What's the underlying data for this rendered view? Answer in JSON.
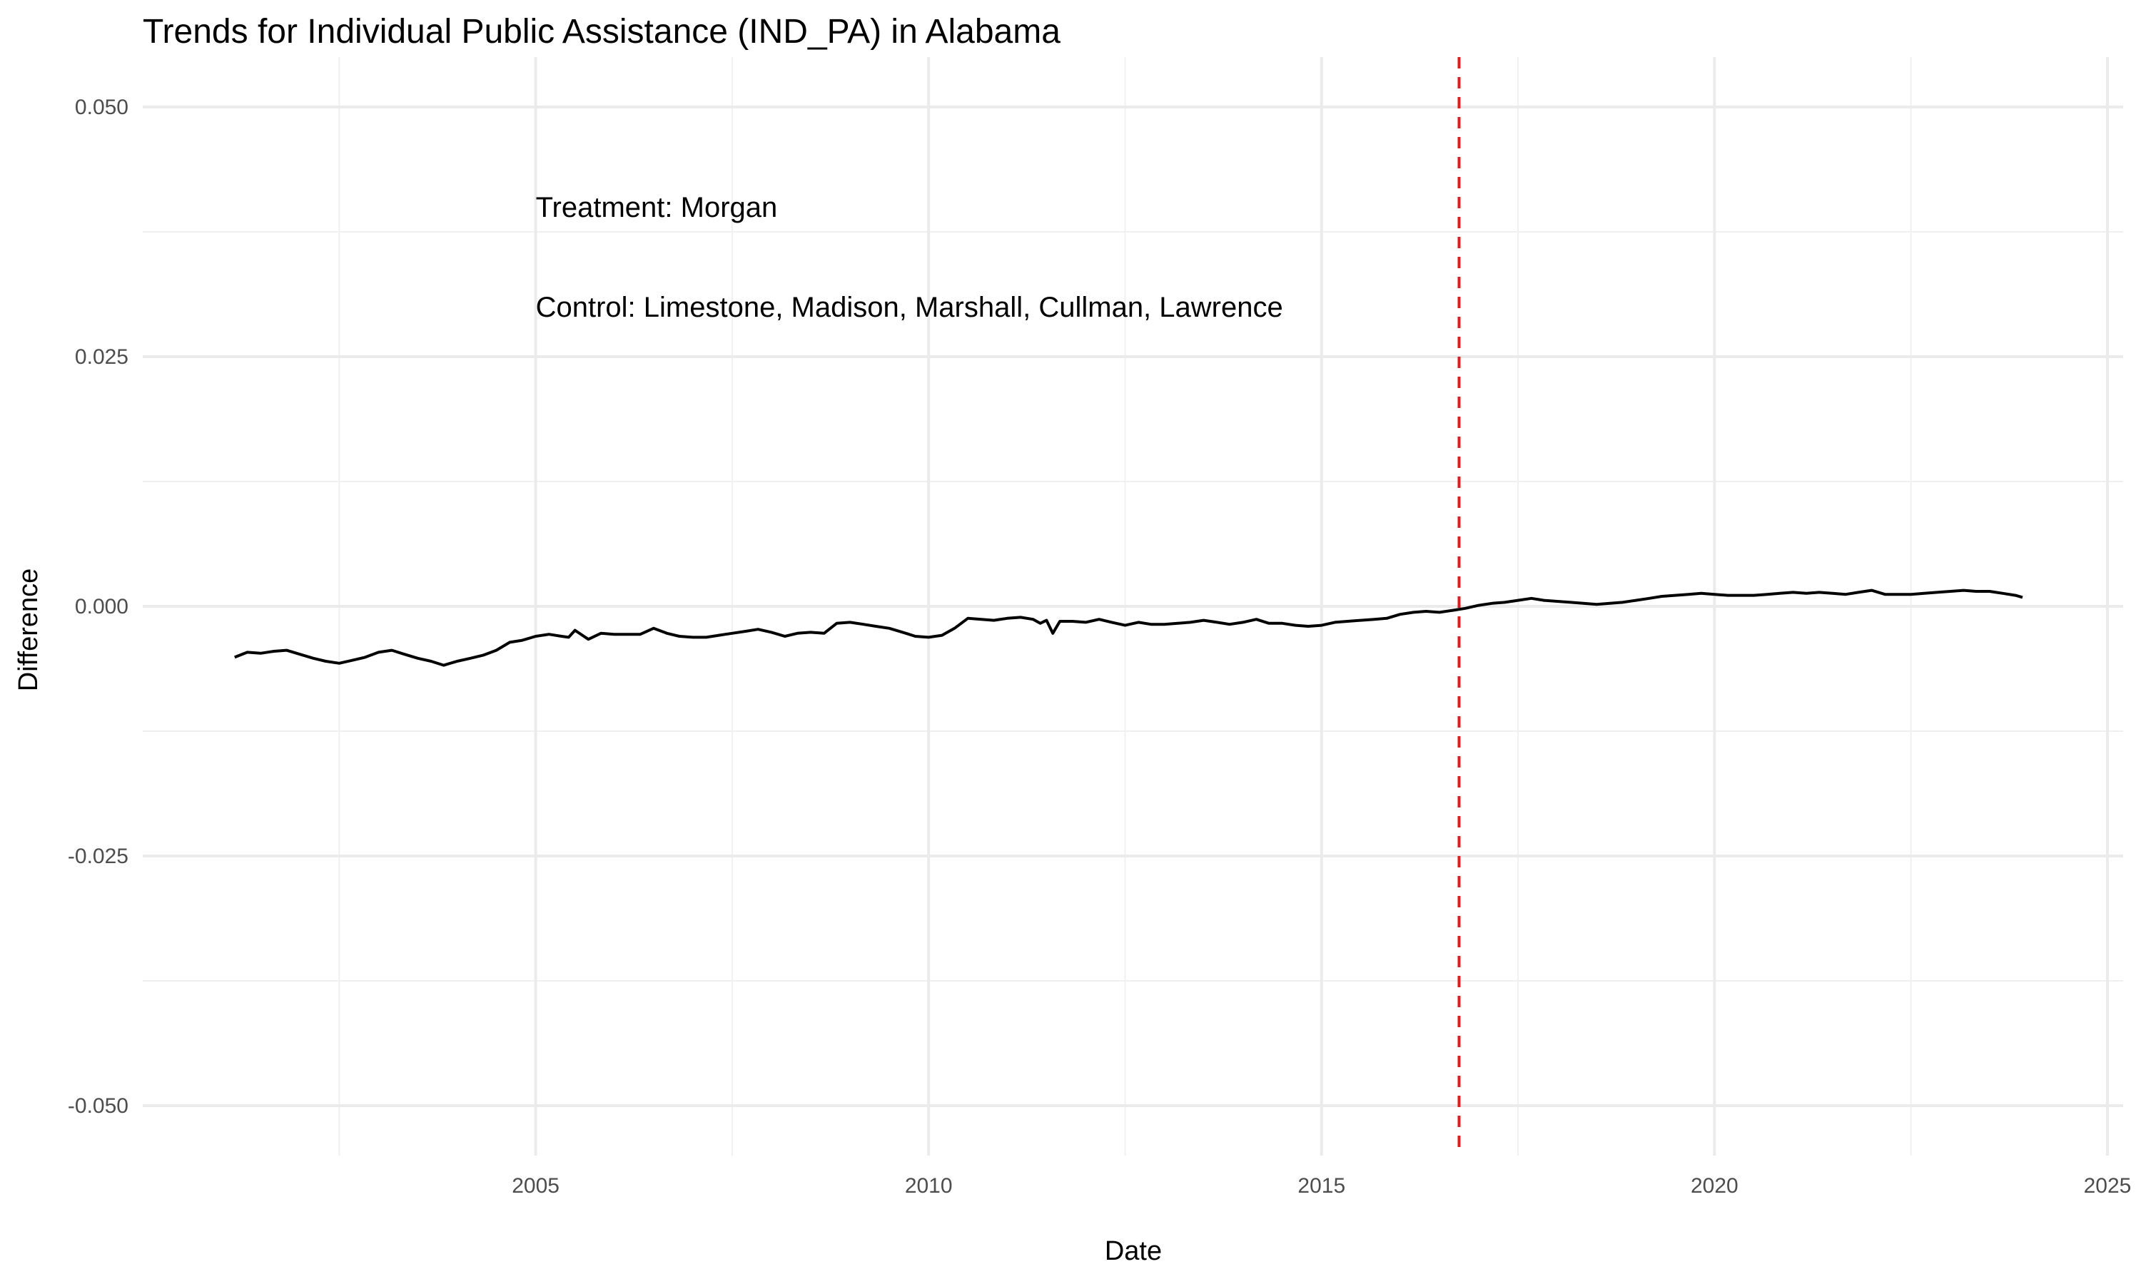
{
  "chart_data": {
    "type": "line",
    "title": "Trends for Individual Public Assistance (IND_PA) in Alabama",
    "xlabel": "Date",
    "ylabel": "Difference",
    "xlim": [
      2000.0,
      2025.2
    ],
    "ylim": [
      -0.055,
      0.055
    ],
    "x_ticks": [
      {
        "label": "2005",
        "value": 2005
      },
      {
        "label": "2010",
        "value": 2010
      },
      {
        "label": "2015",
        "value": 2015
      },
      {
        "label": "2020",
        "value": 2020
      },
      {
        "label": "2025",
        "value": 2025
      }
    ],
    "x_minor_ticks": [
      2002.5,
      2007.5,
      2012.5,
      2017.5,
      2022.5
    ],
    "y_ticks": [
      {
        "label": "0.050",
        "value": 0.05
      },
      {
        "label": "0.025",
        "value": 0.025
      },
      {
        "label": "0.000",
        "value": 0.0
      },
      {
        "label": "-0.025",
        "value": -0.025
      },
      {
        "label": "-0.050",
        "value": -0.05
      }
    ],
    "y_minor_ticks": [
      0.0375,
      0.0125,
      -0.0125,
      -0.0375
    ],
    "grid": true,
    "line_color": "#000000",
    "reference_line": {
      "x": 2016.75,
      "color": "#e41a1c",
      "style": "dashed"
    },
    "annotations": [
      {
        "text": "Treatment: Morgan",
        "x": 2005.0,
        "y": 0.04
      },
      {
        "text": "Control: Limestone, Madison, Marshall, Cullman, Lawrence",
        "x": 2005.0,
        "y": 0.03
      }
    ],
    "series": [
      {
        "x": [
          2001.17,
          2001.33,
          2001.5,
          2001.67,
          2001.83,
          2002.0,
          2002.17,
          2002.33,
          2002.5,
          2002.67,
          2002.83,
          2003.0,
          2003.17,
          2003.33,
          2003.5,
          2003.67,
          2003.83,
          2004.0,
          2004.17,
          2004.33,
          2004.5,
          2004.67,
          2004.83,
          2005.0,
          2005.17,
          2005.33,
          2005.42,
          2005.5,
          2005.67,
          2005.83,
          2006.0,
          2006.17,
          2006.33,
          2006.5,
          2006.67,
          2006.83,
          2007.0,
          2007.17,
          2007.33,
          2007.5,
          2007.67,
          2007.83,
          2008.0,
          2008.17,
          2008.33,
          2008.5,
          2008.67,
          2008.83,
          2009.0,
          2009.17,
          2009.33,
          2009.5,
          2009.67,
          2009.83,
          2010.0,
          2010.17,
          2010.33,
          2010.5,
          2010.67,
          2010.83,
          2011.0,
          2011.17,
          2011.33,
          2011.42,
          2011.5,
          2011.58,
          2011.67,
          2011.83,
          2012.0,
          2012.17,
          2012.33,
          2012.5,
          2012.67,
          2012.83,
          2013.0,
          2013.17,
          2013.33,
          2013.5,
          2013.67,
          2013.83,
          2014.0,
          2014.17,
          2014.33,
          2014.5,
          2014.67,
          2014.83,
          2015.0,
          2015.17,
          2015.33,
          2015.5,
          2015.67,
          2015.83,
          2016.0,
          2016.17,
          2016.33,
          2016.5,
          2016.67,
          2016.83,
          2017.0,
          2017.17,
          2017.33,
          2017.5,
          2017.67,
          2017.83,
          2018.0,
          2018.17,
          2018.33,
          2018.5,
          2018.67,
          2018.83,
          2019.0,
          2019.17,
          2019.33,
          2019.5,
          2019.67,
          2019.83,
          2020.0,
          2020.17,
          2020.33,
          2020.5,
          2020.67,
          2020.83,
          2021.0,
          2021.17,
          2021.33,
          2021.5,
          2021.67,
          2021.83,
          2022.0,
          2022.17,
          2022.33,
          2022.5,
          2022.67,
          2022.83,
          2023.0,
          2023.17,
          2023.33,
          2023.5,
          2023.67,
          2023.83,
          2023.92
        ],
        "y": [
          -0.0051,
          -0.0046,
          -0.0047,
          -0.0045,
          -0.0044,
          -0.0048,
          -0.0052,
          -0.0055,
          -0.0057,
          -0.0054,
          -0.0051,
          -0.0046,
          -0.0044,
          -0.0048,
          -0.0052,
          -0.0055,
          -0.0059,
          -0.0055,
          -0.0052,
          -0.0049,
          -0.0044,
          -0.0036,
          -0.0034,
          -0.003,
          -0.0028,
          -0.003,
          -0.0031,
          -0.0024,
          -0.0033,
          -0.0027,
          -0.0028,
          -0.0028,
          -0.0028,
          -0.0022,
          -0.0027,
          -0.003,
          -0.0031,
          -0.0031,
          -0.0029,
          -0.0027,
          -0.0025,
          -0.0023,
          -0.0026,
          -0.003,
          -0.0027,
          -0.0026,
          -0.0027,
          -0.0017,
          -0.0016,
          -0.0018,
          -0.002,
          -0.0022,
          -0.0026,
          -0.003,
          -0.0031,
          -0.0029,
          -0.0022,
          -0.0012,
          -0.0013,
          -0.0014,
          -0.0012,
          -0.0011,
          -0.0013,
          -0.0017,
          -0.0014,
          -0.0027,
          -0.0015,
          -0.0015,
          -0.0016,
          -0.0013,
          -0.0016,
          -0.0019,
          -0.0016,
          -0.0018,
          -0.0018,
          -0.0017,
          -0.0016,
          -0.0014,
          -0.0016,
          -0.0018,
          -0.0016,
          -0.0013,
          -0.0017,
          -0.0017,
          -0.0019,
          -0.002,
          -0.0019,
          -0.0016,
          -0.0015,
          -0.0014,
          -0.0013,
          -0.0012,
          -0.0008,
          -0.0006,
          -0.0005,
          -0.0006,
          -0.0004,
          -0.0002,
          0.0001,
          0.0003,
          0.0004,
          0.0006,
          0.0008,
          0.0006,
          0.0005,
          0.0004,
          0.0003,
          0.0002,
          0.0003,
          0.0004,
          0.0006,
          0.0008,
          0.001,
          0.0011,
          0.0012,
          0.0013,
          0.0012,
          0.0011,
          0.0011,
          0.0011,
          0.0012,
          0.0013,
          0.0014,
          0.0013,
          0.0014,
          0.0013,
          0.0012,
          0.0014,
          0.0016,
          0.0012,
          0.0012,
          0.0012,
          0.0013,
          0.0014,
          0.0015,
          0.0016,
          0.0015,
          0.0015,
          0.0013,
          0.0011,
          0.0009
        ]
      }
    ]
  }
}
